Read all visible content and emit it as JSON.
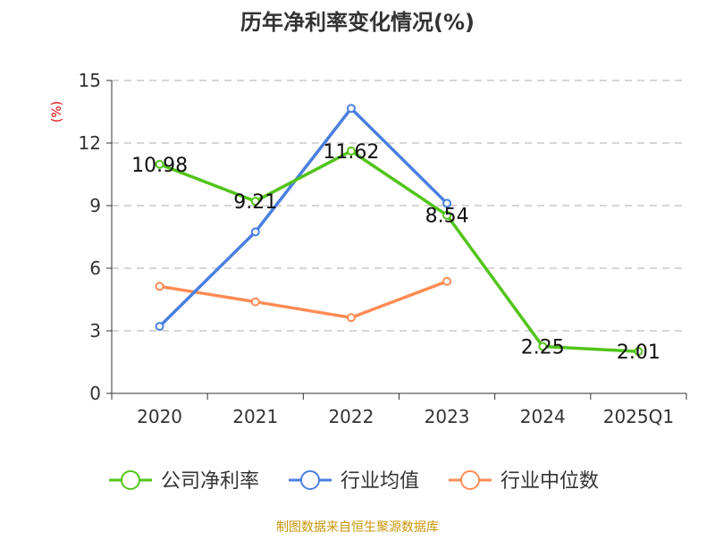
{
  "chart_data": {
    "type": "line",
    "title": "历年净利率变化情况(%)",
    "ylabel": "(%)",
    "xlabel": "",
    "categories": [
      "2020",
      "2021",
      "2022",
      "2023",
      "2024",
      "2025Q1"
    ],
    "ylim": [
      0,
      15
    ],
    "yticks": [
      0,
      3,
      6,
      9,
      12,
      15
    ],
    "grid": true,
    "legend_position": "bottom",
    "series": [
      {
        "name": "公司净利率",
        "color": "#52c41a",
        "values": [
          10.98,
          9.21,
          11.62,
          8.54,
          2.25,
          2.01
        ],
        "labels": [
          "10.98",
          "9.21",
          "11.62",
          "8.54",
          "2.25",
          "2.01"
        ]
      },
      {
        "name": "行业均值",
        "color": "#4a7fe0",
        "values": [
          3.21,
          7.74,
          13.66,
          9.11,
          null,
          null
        ]
      },
      {
        "name": "行业中位数",
        "color": "#ff8c55",
        "values": [
          5.13,
          4.39,
          3.63,
          5.37,
          null,
          null
        ]
      }
    ]
  },
  "footer": {
    "source": "制图数据来自恒生聚源数据库",
    "color": "#c8960c"
  }
}
